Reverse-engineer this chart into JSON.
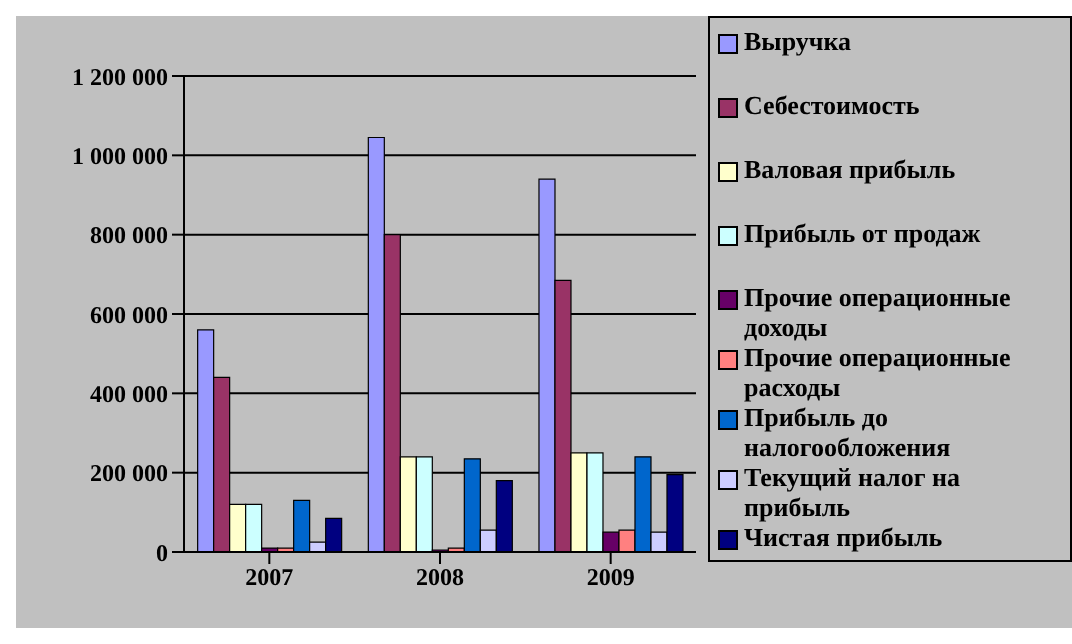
{
  "chart_data": {
    "type": "bar",
    "categories": [
      "2007",
      "2008",
      "2009"
    ],
    "series": [
      {
        "name": "Выручка",
        "color": "#9999ff",
        "values": [
          560000,
          1045000,
          940000
        ]
      },
      {
        "name": "Себестоимость",
        "color": "#993366",
        "values": [
          440000,
          800000,
          685000
        ]
      },
      {
        "name": "Валовая прибыль",
        "color": "#ffffcc",
        "values": [
          120000,
          240000,
          250000
        ]
      },
      {
        "name": "Прибыль от продаж",
        "color": "#ccffff",
        "values": [
          120000,
          240000,
          250000
        ]
      },
      {
        "name": "Прочие операционные доходы",
        "color": "#660066",
        "values": [
          10000,
          5000,
          50000
        ]
      },
      {
        "name": "Прочие операционные расходы",
        "color": "#ff8080",
        "values": [
          10000,
          10000,
          55000
        ]
      },
      {
        "name": "Прибыль до налогообложения",
        "color": "#0066cc",
        "values": [
          130000,
          235000,
          240000
        ]
      },
      {
        "name": "Текущий налог на прибыль",
        "color": "#ccccff",
        "values": [
          25000,
          55000,
          50000
        ]
      },
      {
        "name": "Чистая прибыль",
        "color": "#000080",
        "values": [
          85000,
          180000,
          195000
        ]
      }
    ],
    "ylim": [
      0,
      1200000
    ],
    "yticks": [
      {
        "value": 0,
        "label": "0"
      },
      {
        "value": 200000,
        "label": "200 000"
      },
      {
        "value": 400000,
        "label": "400 000"
      },
      {
        "value": 600000,
        "label": "600 000"
      },
      {
        "value": 800000,
        "label": "800 000"
      },
      {
        "value": 1000000,
        "label": "1 000 000"
      },
      {
        "value": 1200000,
        "label": "1 200 000"
      }
    ],
    "grid": "y",
    "legend": "right"
  }
}
